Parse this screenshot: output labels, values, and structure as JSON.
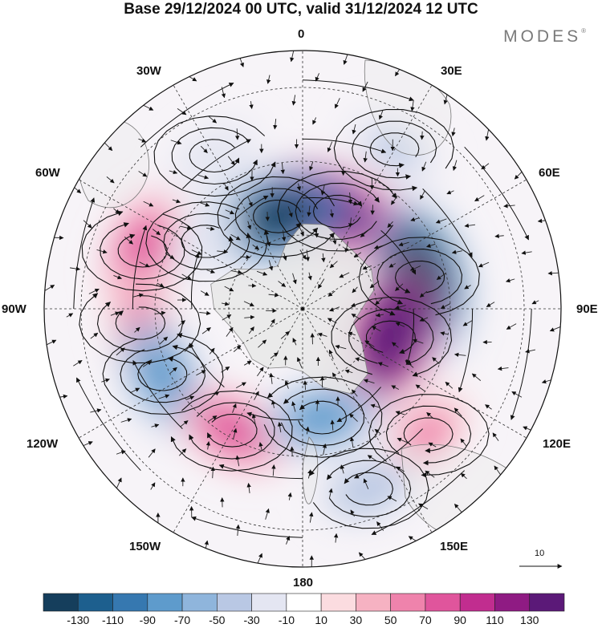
{
  "title": "Base 29/12/2024 00 UTC, valid 31/12/2024 12 UTC",
  "brand": "MODES",
  "brand_mark": "®",
  "longitude_labels": {
    "lon_0": "0",
    "lon_30e": "30E",
    "lon_60e": "60E",
    "lon_90e": "90E",
    "lon_120e": "120E",
    "lon_150e": "150E",
    "lon_180": "180",
    "lon_150w": "150W",
    "lon_120w": "120W",
    "lon_90w": "90W",
    "lon_60w": "60W",
    "lon_30w": "30W"
  },
  "vector_scale_label": "10",
  "colorbar": {
    "labels": [
      "-130",
      "-110",
      "-90",
      "-70",
      "-50",
      "-30",
      "-10",
      "10",
      "30",
      "50",
      "70",
      "90",
      "110",
      "130"
    ],
    "colors": [
      "#153e5c",
      "#1d5f8e",
      "#3678b0",
      "#5e9bcc",
      "#8fb5dc",
      "#b9c8e4",
      "#e4e6f2",
      "#ffffff",
      "#fbdce0",
      "#f6b2c2",
      "#ef83ac",
      "#e0559c",
      "#c12d8f",
      "#8f1b83",
      "#5b1978"
    ]
  },
  "map": {
    "projection": "south-polar-stereographic",
    "land_color": "#e8e8e8",
    "anomaly_features": [
      {
        "lon": 20,
        "colat": 28,
        "value": 130
      },
      {
        "lon": 75,
        "colat": 33,
        "value": -150
      },
      {
        "lon": 108,
        "colat": 25,
        "value": 150
      },
      {
        "lon": -15,
        "colat": 26,
        "value": -140
      },
      {
        "lon": 30,
        "colat": 50,
        "value": -40
      },
      {
        "lon": -70,
        "colat": 46,
        "value": 80
      },
      {
        "lon": -95,
        "colat": 44,
        "value": 60
      },
      {
        "lon": -115,
        "colat": 42,
        "value": -90
      },
      {
        "lon": -150,
        "colat": 38,
        "value": 70
      },
      {
        "lon": 170,
        "colat": 30,
        "value": -80
      },
      {
        "lon": 135,
        "colat": 48,
        "value": 50
      },
      {
        "lon": -55,
        "colat": 32,
        "value": -30
      },
      {
        "lon": -30,
        "colat": 48,
        "value": -30
      },
      {
        "lon": 160,
        "colat": 52,
        "value": -50
      }
    ]
  }
}
